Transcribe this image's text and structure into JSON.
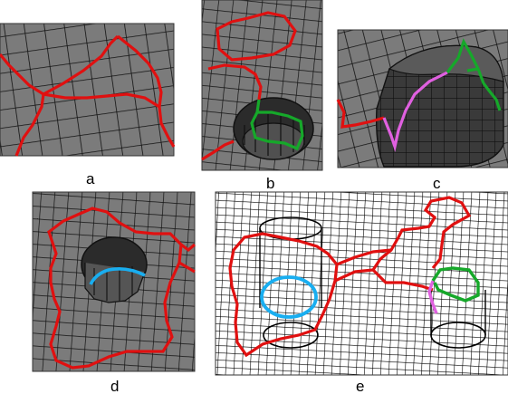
{
  "panels": [
    {
      "id": "a",
      "caption": "a"
    },
    {
      "id": "b",
      "caption": "b"
    },
    {
      "id": "c",
      "caption": "c"
    },
    {
      "id": "d",
      "caption": "d"
    },
    {
      "id": "e",
      "caption": "e"
    }
  ],
  "colors": {
    "mesh_fill": "#7b7b7b",
    "mesh_line": "#111111",
    "hole_dark": "#2b2b2b",
    "red_path": "#e01010",
    "green_path": "#16a82a",
    "blue_path": "#19aef0",
    "magenta_path": "#e060e0",
    "wireframe_bg": "#ffffff"
  }
}
